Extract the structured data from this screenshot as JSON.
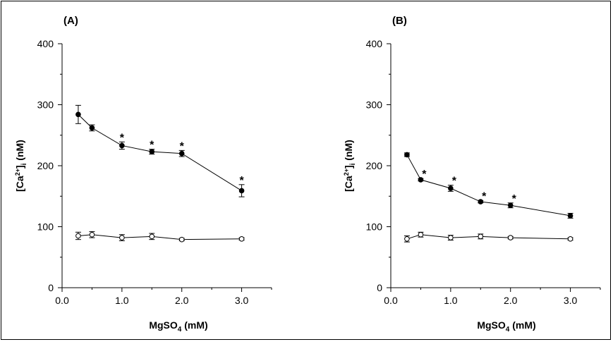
{
  "colors": {
    "filled": "#000000",
    "open": "#ffffff",
    "stroke": "#000000"
  },
  "chart_data": [
    {
      "type": "line",
      "panel_label": "(A)",
      "xlabel": {
        "main": "MgSO",
        "sub": "4",
        "rest": " (mM)"
      },
      "ylabel": {
        "main": "[Ca",
        "sup": "2+",
        "mid": "]",
        "sub": "i",
        "rest": " (nM)"
      },
      "xlim": [
        0,
        3.5
      ],
      "ylim": [
        0,
        400
      ],
      "x_ticks": [
        "0.0",
        "1.0",
        "2.0",
        "3.0"
      ],
      "y_ticks": [
        "0",
        "100",
        "200",
        "300",
        "400"
      ],
      "grid": false,
      "series": [
        {
          "marker": "filled",
          "points": [
            {
              "x": 0.27,
              "y": 284,
              "err": 15
            },
            {
              "x": 0.5,
              "y": 262,
              "err": 5
            },
            {
              "x": 1.0,
              "y": 233,
              "err": 6,
              "sig": "*"
            },
            {
              "x": 1.5,
              "y": 223,
              "err": 4,
              "sig": "*"
            },
            {
              "x": 2.0,
              "y": 220,
              "err": 5,
              "sig": "*"
            },
            {
              "x": 3.0,
              "y": 159,
              "err": 10,
              "sig": "*"
            }
          ]
        },
        {
          "marker": "open",
          "points": [
            {
              "x": 0.27,
              "y": 85,
              "err": 6
            },
            {
              "x": 0.5,
              "y": 87,
              "err": 5
            },
            {
              "x": 1.0,
              "y": 82,
              "err": 5
            },
            {
              "x": 1.5,
              "y": 84,
              "err": 5
            },
            {
              "x": 2.0,
              "y": 79,
              "err": 2
            },
            {
              "x": 3.0,
              "y": 80,
              "err": 2
            }
          ]
        }
      ]
    },
    {
      "type": "line",
      "panel_label": "(B)",
      "xlabel": {
        "main": "MgSO",
        "sub": "4",
        "rest": " (mM)"
      },
      "ylabel": {
        "main": "[Ca",
        "sup": "2+",
        "mid": "]",
        "sub": "i",
        "rest": " (nM)"
      },
      "xlim": [
        0,
        3.5
      ],
      "ylim": [
        0,
        400
      ],
      "x_ticks": [
        "0.0",
        "1.0",
        "2.0",
        "3.0"
      ],
      "y_ticks": [
        "0",
        "100",
        "200",
        "300",
        "400"
      ],
      "grid": false,
      "series": [
        {
          "marker": "filled",
          "points": [
            {
              "x": 0.27,
              "y": 218,
              "err": 3
            },
            {
              "x": 0.5,
              "y": 177,
              "err": 2,
              "sig": "*"
            },
            {
              "x": 1.0,
              "y": 163,
              "err": 5,
              "sig": "*"
            },
            {
              "x": 1.5,
              "y": 141,
              "err": 2,
              "sig": "*"
            },
            {
              "x": 2.0,
              "y": 135,
              "err": 4,
              "sig": "*"
            },
            {
              "x": 3.0,
              "y": 118,
              "err": 4
            }
          ]
        },
        {
          "marker": "open",
          "points": [
            {
              "x": 0.27,
              "y": 80,
              "err": 5
            },
            {
              "x": 0.5,
              "y": 87,
              "err": 4
            },
            {
              "x": 1.0,
              "y": 82,
              "err": 4
            },
            {
              "x": 1.5,
              "y": 84,
              "err": 4
            },
            {
              "x": 2.0,
              "y": 82,
              "err": 2
            },
            {
              "x": 3.0,
              "y": 80,
              "err": 2
            }
          ]
        }
      ]
    }
  ]
}
